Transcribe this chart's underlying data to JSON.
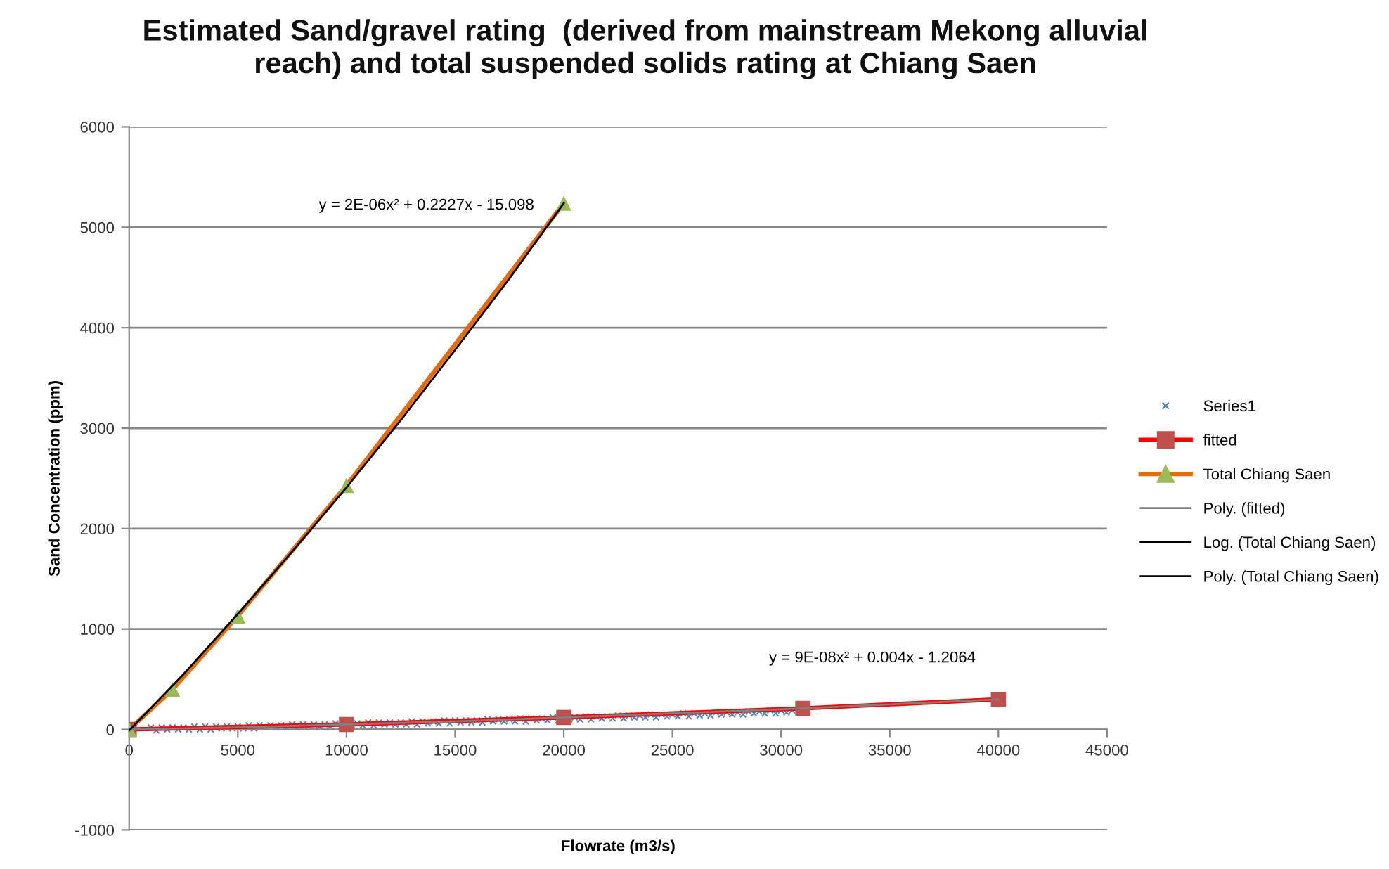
{
  "chart_data": {
    "type": "scatter",
    "title": "Estimated Sand/gravel rating  (derived from mainstream Mekong alluvial reach) and total suspended solids rating at Chiang Saen",
    "xlabel": "Flowrate (m3/s)",
    "ylabel": "Sand Concentration (ppm)",
    "xlim": [
      0,
      45000
    ],
    "xticks": [
      0,
      5000,
      10000,
      15000,
      20000,
      25000,
      30000,
      35000,
      40000,
      45000
    ],
    "ylim": [
      -1000,
      6000
    ],
    "yticks": [
      -1000,
      0,
      1000,
      2000,
      3000,
      4000,
      5000,
      6000
    ],
    "grid": "y",
    "legend": "right",
    "annotations": [
      "y = 2E-06x² + 0.2227x - 15.098",
      "y = 9E-08x² + 0.004x - 1.2064"
    ],
    "series": [
      {
        "name": "Series1",
        "marker": "cross",
        "color": "#4f81bd",
        "x": [
          1000,
          1250,
          1500,
          1750,
          2000,
          2250,
          2500,
          2750,
          3000,
          3250,
          3500,
          3750,
          4000,
          4250,
          4500,
          4750,
          5000,
          5250,
          5500,
          5750,
          6000,
          6250,
          6500,
          6750,
          7000,
          7250,
          7500,
          7750,
          8000,
          8250,
          8500,
          8750,
          9000,
          9250,
          9500,
          9750,
          10250,
          10500,
          10750,
          11000,
          11250,
          11500,
          11750,
          12000,
          12250,
          12500,
          12750,
          13000,
          13250,
          13500,
          13750,
          14000,
          14250,
          14500,
          14750,
          15000,
          15250,
          15500,
          15750,
          16000,
          16250,
          16500,
          16750,
          17000,
          17250,
          17500,
          17750,
          18000,
          18250,
          18500,
          18750,
          19000,
          19250,
          19500,
          19750,
          20250,
          20500,
          20750,
          21000,
          21250,
          21500,
          21750,
          22000,
          22250,
          22500,
          22750,
          23000,
          23250,
          23500,
          23750,
          24000,
          24250,
          24500,
          24750,
          25000,
          25250,
          25500,
          25750,
          26000,
          26250,
          26500,
          26750,
          27000,
          27250,
          27500,
          27750,
          28000,
          28250,
          28500,
          28750,
          29000,
          29250,
          29500,
          29750,
          30000,
          30250,
          30500
        ],
        "values": [
          20,
          -10,
          20,
          0,
          20,
          0,
          20,
          0,
          30,
          0,
          30,
          0,
          30,
          10,
          30,
          10,
          30,
          10,
          40,
          10,
          40,
          20,
          40,
          20,
          40,
          20,
          50,
          20,
          50,
          30,
          50,
          30,
          50,
          30,
          60,
          30,
          40,
          60,
          40,
          70,
          40,
          70,
          50,
          70,
          50,
          70,
          50,
          80,
          50,
          80,
          60,
          80,
          60,
          90,
          60,
          90,
          70,
          90,
          70,
          90,
          70,
          100,
          80,
          100,
          80,
          100,
          80,
          110,
          80,
          110,
          90,
          110,
          90,
          120,
          90,
          100,
          120,
          100,
          130,
          100,
          130,
          110,
          130,
          110,
          140,
          110,
          140,
          120,
          140,
          120,
          150,
          120,
          150,
          130,
          150,
          130,
          160,
          130,
          160,
          140,
          160,
          140,
          170,
          150,
          170,
          150,
          170,
          150,
          180,
          160,
          180,
          160,
          190,
          160,
          190,
          170,
          190
        ]
      },
      {
        "name": "fitted",
        "type": "line",
        "marker": "square",
        "color": "#ff0000",
        "colors": [
          "#c0504d",
          "#c0504d",
          "#c0504d",
          "#c0504d",
          "#c0504d"
        ],
        "x": [
          0,
          10000,
          20000,
          31000,
          40000
        ],
        "values": [
          0,
          50,
          120,
          210,
          300
        ]
      },
      {
        "name": "Total Chiang Saen",
        "type": "line",
        "marker": "triangle",
        "color": "#e46c0a",
        "colors": [
          "#9bbb59",
          "#9bbb59",
          "#9bbb59",
          "#9bbb59",
          "#9bbb59"
        ],
        "x": [
          0,
          2000,
          5000,
          10000,
          20000
        ],
        "values": [
          0,
          400,
          1130,
          2430,
          5240
        ]
      },
      {
        "name": "Poly. (fitted)",
        "type": "line",
        "marker": "none",
        "color": "#7f7f7f",
        "x": [
          0,
          5000,
          10000,
          15000,
          20000,
          25000,
          30000,
          35000,
          40000
        ],
        "values": [
          0,
          20,
          50,
          80,
          120,
          160,
          200,
          250,
          300
        ]
      },
      {
        "name": "Log. (Total Chiang Saen)",
        "type": "line",
        "marker": "none",
        "color": "#000000"
      },
      {
        "name": "Poly. (Total Chiang Saen)",
        "type": "line",
        "marker": "none",
        "color": "#000000",
        "x": [
          0,
          2500,
          5000,
          7500,
          10000,
          12500,
          15000,
          17500,
          20000
        ],
        "values": [
          -10,
          550,
          1150,
          1770,
          2410,
          3080,
          3780,
          4490,
          5240
        ]
      }
    ]
  }
}
